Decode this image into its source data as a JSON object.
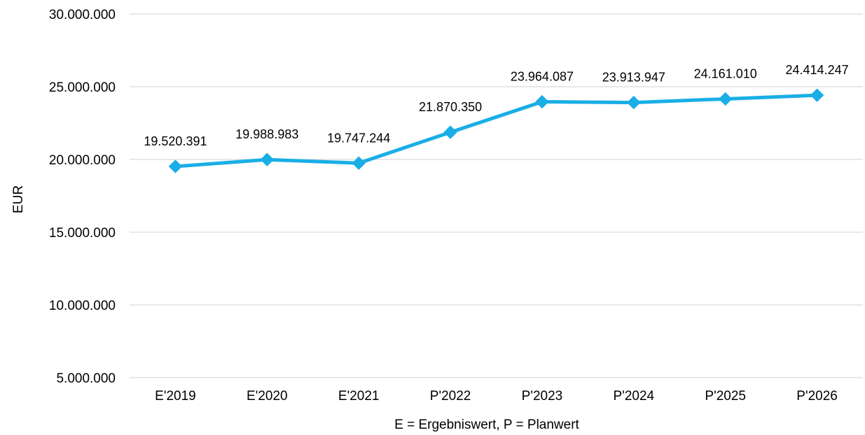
{
  "chart_data": {
    "type": "line",
    "categories": [
      "E'2019",
      "E'2020",
      "E'2021",
      "P'2022",
      "P'2023",
      "P'2024",
      "P'2025",
      "P'2026"
    ],
    "series": [
      {
        "values": [
          19520391,
          19988983,
          19747244,
          21870350,
          23964087,
          23913947,
          24161010,
          24414247
        ],
        "data_labels": [
          "19.520.391",
          "19.988.983",
          "19.747.244",
          "21.870.350",
          "23.964.087",
          "23.913.947",
          "24.161.010",
          "24.414.247"
        ],
        "color": "#1aaee6",
        "marker": "diamond"
      }
    ],
    "ylabel": "EUR",
    "xlabel": "E = Ergebniswert, P = Planwert",
    "ylim": [
      5000000,
      30000000
    ],
    "yticks": [
      5000000,
      10000000,
      15000000,
      20000000,
      25000000,
      30000000
    ],
    "ytick_labels": [
      "5.000.000",
      "10.000.000",
      "15.000.000",
      "20.000.000",
      "25.000.000",
      "30.000.000"
    ],
    "grid": true,
    "legend": "none"
  }
}
